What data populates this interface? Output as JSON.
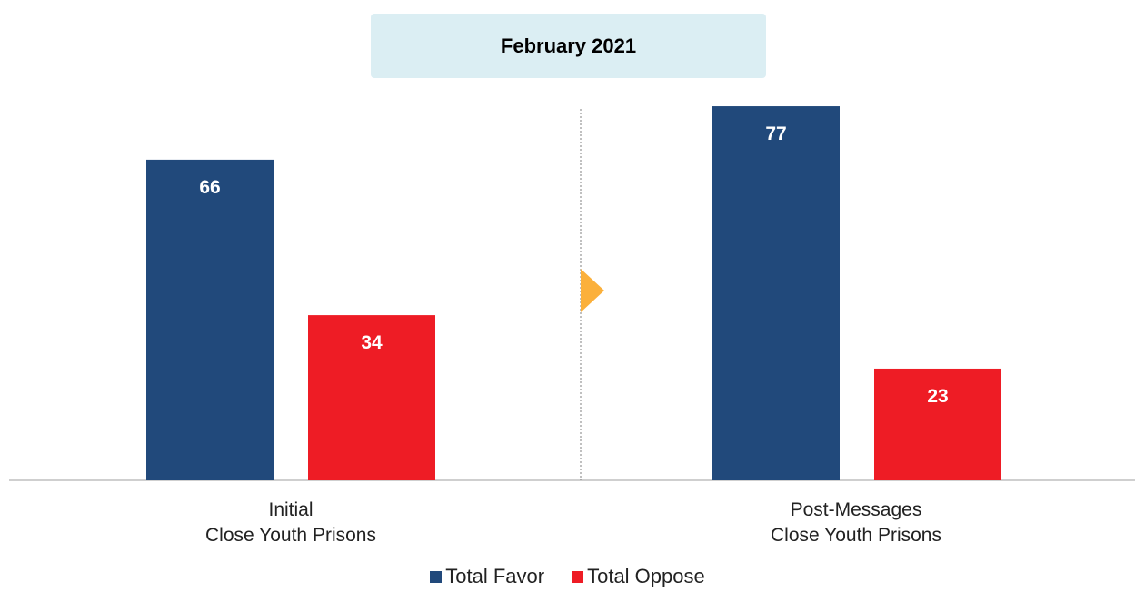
{
  "title": "February 2021",
  "colors": {
    "favor": "#21497b",
    "oppose": "#ee1c25",
    "arrow": "#fbb03b",
    "title_bg": "#dbeef3"
  },
  "chart_data": {
    "type": "bar",
    "title": "February 2021",
    "categories": [
      [
        "Initial",
        "Close Youth Prisons"
      ],
      [
        "Post-Messages",
        "Close Youth Prisons"
      ]
    ],
    "series": [
      {
        "name": "Total Favor",
        "values": [
          66,
          77
        ],
        "color": "#21497b"
      },
      {
        "name": "Total Oppose",
        "values": [
          34,
          23
        ],
        "color": "#ee1c25"
      }
    ],
    "data_labels": [
      [
        "66",
        "77"
      ],
      [
        "34",
        "23"
      ]
    ],
    "ylim": [
      0,
      100
    ],
    "grid": false,
    "legend_position": "bottom"
  }
}
